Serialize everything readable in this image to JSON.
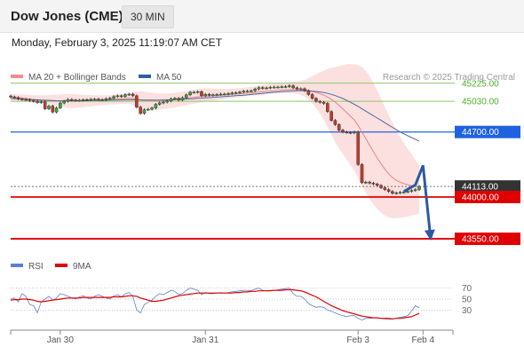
{
  "header": {
    "title": "Dow Jones (CME)",
    "timeframe": "30 MIN"
  },
  "datetime": "Monday, February 3, 2025 11:19:07 AM CET",
  "legend": {
    "items": [
      {
        "label": "MA 20 + Bollinger Bands",
        "color": "#f28b8b"
      },
      {
        "label": "MA 50",
        "color": "#2e5f9e"
      }
    ],
    "credit": "Research © 2025 Trading Central"
  },
  "rsi_legend": {
    "items": [
      {
        "label": "RSI",
        "color": "#5b7fd6"
      },
      {
        "label": "9MA",
        "color": "#e00000"
      }
    ]
  },
  "chart_data": [
    {
      "type": "candlestick",
      "title": "Dow Jones (CME)",
      "ylim": [
        43350,
        45500
      ],
      "levels": [
        {
          "label": "45225.00",
          "value": 45225,
          "kind": "resistance",
          "color": "#8cc66a",
          "label_bg": "#ffffff",
          "label_color": "#4caf2a"
        },
        {
          "label": "45030.00",
          "value": 45030,
          "kind": "resistance",
          "color": "#8cc66a",
          "label_bg": "#ffffff",
          "label_color": "#4caf2a"
        },
        {
          "label": "44700.00",
          "value": 44700,
          "kind": "pivot",
          "color": "#1f62e0",
          "label_bg": "#1f62e0",
          "label_color": "#ffffff"
        },
        {
          "label": "44113.00",
          "value": 44113,
          "kind": "last",
          "color": "#333333",
          "label_bg": "#333333",
          "label_color": "#ffffff"
        },
        {
          "label": "44000.00",
          "value": 44000,
          "kind": "support",
          "color": "#e00000",
          "label_bg": "#e00000",
          "label_color": "#ffffff"
        },
        {
          "label": "43550.00",
          "value": 43550,
          "kind": "support",
          "color": "#e00000",
          "label_bg": "#e00000",
          "label_color": "#ffffff"
        }
      ],
      "x_ticks": [
        {
          "label": "Jan 30",
          "index": 13
        },
        {
          "label": "Jan 31",
          "index": 51
        },
        {
          "label": "Feb 3",
          "index": 91
        },
        {
          "label": "Feb 4",
          "index": 108
        }
      ],
      "close": [
        45078,
        45070,
        45056,
        45050,
        45048,
        45038,
        45032,
        45018,
        45025,
        44950,
        44980,
        44915,
        44960,
        45012,
        45032,
        45050,
        45044,
        45040,
        45042,
        45048,
        45046,
        45052,
        45054,
        45048,
        45046,
        45058,
        45064,
        45082,
        45090,
        45082,
        45102,
        45108,
        45090,
        44968,
        44900,
        44940,
        44945,
        44958,
        44998,
        45014,
        45022,
        45034,
        45057,
        45062,
        45044,
        45070,
        45100,
        45128,
        45128,
        45134,
        45090,
        45106,
        45096,
        45100,
        45104,
        45108,
        45109,
        45114,
        45121,
        45124,
        45130,
        45139,
        45140,
        45144,
        45163,
        45178,
        45170,
        45175,
        45182,
        45184,
        45184,
        45187,
        45189,
        45198,
        45176,
        45164,
        45166,
        45145,
        45104,
        45062,
        45030,
        45020,
        45008,
        44920,
        44825,
        44780,
        44720,
        44700,
        44695,
        44690,
        44700,
        44350,
        44155,
        44160,
        44150,
        44140,
        44125,
        44100,
        44080,
        44060,
        44040,
        44045,
        44050,
        44055,
        44060,
        44070,
        44080,
        44113
      ],
      "ma20": [
        45080,
        45075,
        45070,
        45065,
        45060,
        45055,
        45050,
        45045,
        45042,
        45040,
        45038,
        45036,
        45035,
        45035,
        45036,
        45038,
        45040,
        45040,
        45041,
        45042,
        45043,
        45044,
        45045,
        45046,
        45047,
        45048,
        45050,
        45053,
        45056,
        45059,
        45062,
        45064,
        45060,
        45052,
        45045,
        45040,
        45036,
        45034,
        45034,
        45035,
        45038,
        45042,
        45046,
        45050,
        45054,
        45059,
        45064,
        45069,
        45074,
        45079,
        45082,
        45085,
        45088,
        45091,
        45094,
        45097,
        45100,
        45103,
        45106,
        45109,
        45112,
        45115,
        45118,
        45121,
        45125,
        45129,
        45133,
        45137,
        45141,
        45144,
        45147,
        45150,
        45153,
        45156,
        45158,
        45158,
        45157,
        45153,
        45146,
        45137,
        45125,
        45112,
        45097,
        45077,
        45052,
        45022,
        44988,
        44950,
        44910,
        44868,
        44830,
        44770,
        44700,
        44630,
        44560,
        44490,
        44420,
        44360,
        44300,
        44250,
        44210,
        44180,
        44160,
        44145,
        44133,
        44123,
        44116,
        44110
      ],
      "ma50": [
        45060,
        45058,
        45056,
        45054,
        45052,
        45050,
        45048,
        45046,
        45044,
        45042,
        45040,
        45038,
        45037,
        45036,
        45035,
        45035,
        45035,
        45035,
        45036,
        45036,
        45037,
        45038,
        45038,
        45039,
        45040,
        45041,
        45042,
        45043,
        45044,
        45045,
        45046,
        45047,
        45047,
        45046,
        45045,
        45044,
        45043,
        45043,
        45043,
        45044,
        45045,
        45046,
        45047,
        45049,
        45051,
        45053,
        45055,
        45057,
        45059,
        45062,
        45064,
        45067,
        45070,
        45073,
        45076,
        45079,
        45082,
        45085,
        45088,
        45091,
        45094,
        45097,
        45100,
        45104,
        45108,
        45112,
        45116,
        45120,
        45124,
        45128,
        45131,
        45134,
        45137,
        45140,
        45142,
        45144,
        45145,
        45145,
        45143,
        45140,
        45136,
        45131,
        45125,
        45116,
        45105,
        45092,
        45077,
        45060,
        45040,
        45020,
        44998,
        44975,
        44950,
        44925,
        44900,
        44875,
        44850,
        44825,
        44800,
        44775,
        44750,
        44725,
        44700,
        44680,
        44660,
        44640,
        44620,
        44600
      ],
      "bb_upper": [
        45110,
        45108,
        45106,
        45104,
        45102,
        45100,
        45098,
        45096,
        45095,
        45096,
        45098,
        45100,
        45102,
        45104,
        45106,
        45108,
        45108,
        45106,
        45104,
        45102,
        45100,
        45098,
        45097,
        45096,
        45095,
        45096,
        45098,
        45101,
        45104,
        45108,
        45112,
        45116,
        45125,
        45135,
        45140,
        45135,
        45128,
        45122,
        45118,
        45115,
        45114,
        45115,
        45118,
        45122,
        45127,
        45133,
        45140,
        45148,
        45156,
        45164,
        45168,
        45170,
        45170,
        45168,
        45166,
        45165,
        45165,
        45166,
        45168,
        45170,
        45173,
        45177,
        45181,
        45186,
        45192,
        45199,
        45206,
        45212,
        45218,
        45223,
        45226,
        45228,
        45230,
        45234,
        45238,
        45244,
        45252,
        45262,
        45280,
        45300,
        45320,
        45345,
        45360,
        45380,
        45390,
        45400,
        45410,
        45420,
        45430,
        45430,
        45430,
        45420,
        45400,
        45360,
        45300,
        45230,
        45150,
        45060,
        44970,
        44880,
        44800,
        44720,
        44650,
        44580,
        44520,
        44460,
        44400,
        44340
      ],
      "bb_lower": [
        45040,
        45036,
        45032,
        45028,
        45024,
        45020,
        45016,
        45012,
        45008,
        45002,
        44996,
        44988,
        44980,
        44972,
        44965,
        44960,
        44958,
        44960,
        44964,
        44968,
        44972,
        44976,
        44980,
        44984,
        44988,
        44992,
        44996,
        44998,
        45000,
        45002,
        45004,
        45006,
        44992,
        44972,
        44952,
        44940,
        44935,
        44934,
        44936,
        44940,
        44946,
        44952,
        44958,
        44964,
        44972,
        44980,
        44988,
        44996,
        45004,
        45012,
        45018,
        45024,
        45030,
        45036,
        45042,
        45048,
        45054,
        45060,
        45066,
        45072,
        45078,
        45082,
        45086,
        45090,
        45094,
        45098,
        45102,
        45106,
        45110,
        45113,
        45116,
        45119,
        45121,
        45122,
        45118,
        45110,
        45098,
        45080,
        45050,
        45010,
        44960,
        44900,
        44830,
        44750,
        44670,
        44590,
        44520,
        44460,
        44400,
        44340,
        44280,
        44200,
        44120,
        44050,
        43980,
        43920,
        43870,
        43830,
        43800,
        43780,
        43770,
        43770,
        43775,
        43780,
        43790,
        43800,
        43810,
        43820
      ],
      "projection": [
        [
          103,
          44060
        ],
        [
          106,
          44130
        ],
        [
          108,
          44340
        ],
        [
          110,
          43550
        ]
      ]
    },
    {
      "type": "line",
      "title": "RSI",
      "ylim": [
        0,
        100
      ],
      "y_ticks": [
        30,
        50,
        70
      ],
      "series": [
        {
          "name": "RSI",
          "values": [
            50,
            52,
            45,
            60,
            55,
            40,
            38,
            25,
            45,
            50,
            55,
            48,
            52,
            60,
            58,
            55,
            52,
            50,
            54,
            56,
            52,
            50,
            55,
            58,
            55,
            52,
            50,
            56,
            58,
            54,
            60,
            62,
            55,
            30,
            25,
            40,
            44,
            48,
            55,
            60,
            58,
            62,
            66,
            64,
            58,
            60,
            66,
            70,
            68,
            66,
            58,
            62,
            60,
            60,
            61,
            62,
            61,
            62,
            63,
            64,
            65,
            66,
            66,
            65,
            68,
            70,
            66,
            65,
            66,
            66,
            67,
            68,
            69,
            70,
            60,
            55,
            55,
            50,
            42,
            38,
            35,
            36,
            35,
            30,
            28,
            25,
            22,
            20,
            18,
            20,
            20,
            15,
            12,
            15,
            15,
            16,
            16,
            15,
            14,
            13,
            14,
            15,
            17,
            18,
            20,
            28,
            38,
            34
          ]
        },
        {
          "name": "9MA",
          "values": [
            48,
            49,
            49,
            50,
            50,
            49,
            48,
            46,
            45,
            46,
            47,
            48,
            49,
            50,
            51,
            52,
            52,
            52,
            52,
            53,
            53,
            53,
            53,
            53,
            53,
            53,
            53,
            54,
            54,
            54,
            55,
            56,
            56,
            55,
            52,
            50,
            48,
            46,
            46,
            47,
            48,
            50,
            52,
            54,
            56,
            57,
            58,
            59,
            60,
            61,
            61,
            61,
            61,
            61,
            61,
            61,
            61,
            61,
            61,
            62,
            62,
            63,
            63,
            64,
            64,
            65,
            65,
            65,
            65,
            66,
            66,
            66,
            67,
            67,
            67,
            66,
            65,
            63,
            60,
            57,
            54,
            50,
            46,
            42,
            38,
            35,
            32,
            29,
            27,
            25,
            23,
            21,
            19,
            18,
            17,
            16,
            16,
            15,
            15,
            15,
            14,
            15,
            15,
            16,
            17,
            18,
            21,
            24
          ]
        }
      ]
    }
  ]
}
